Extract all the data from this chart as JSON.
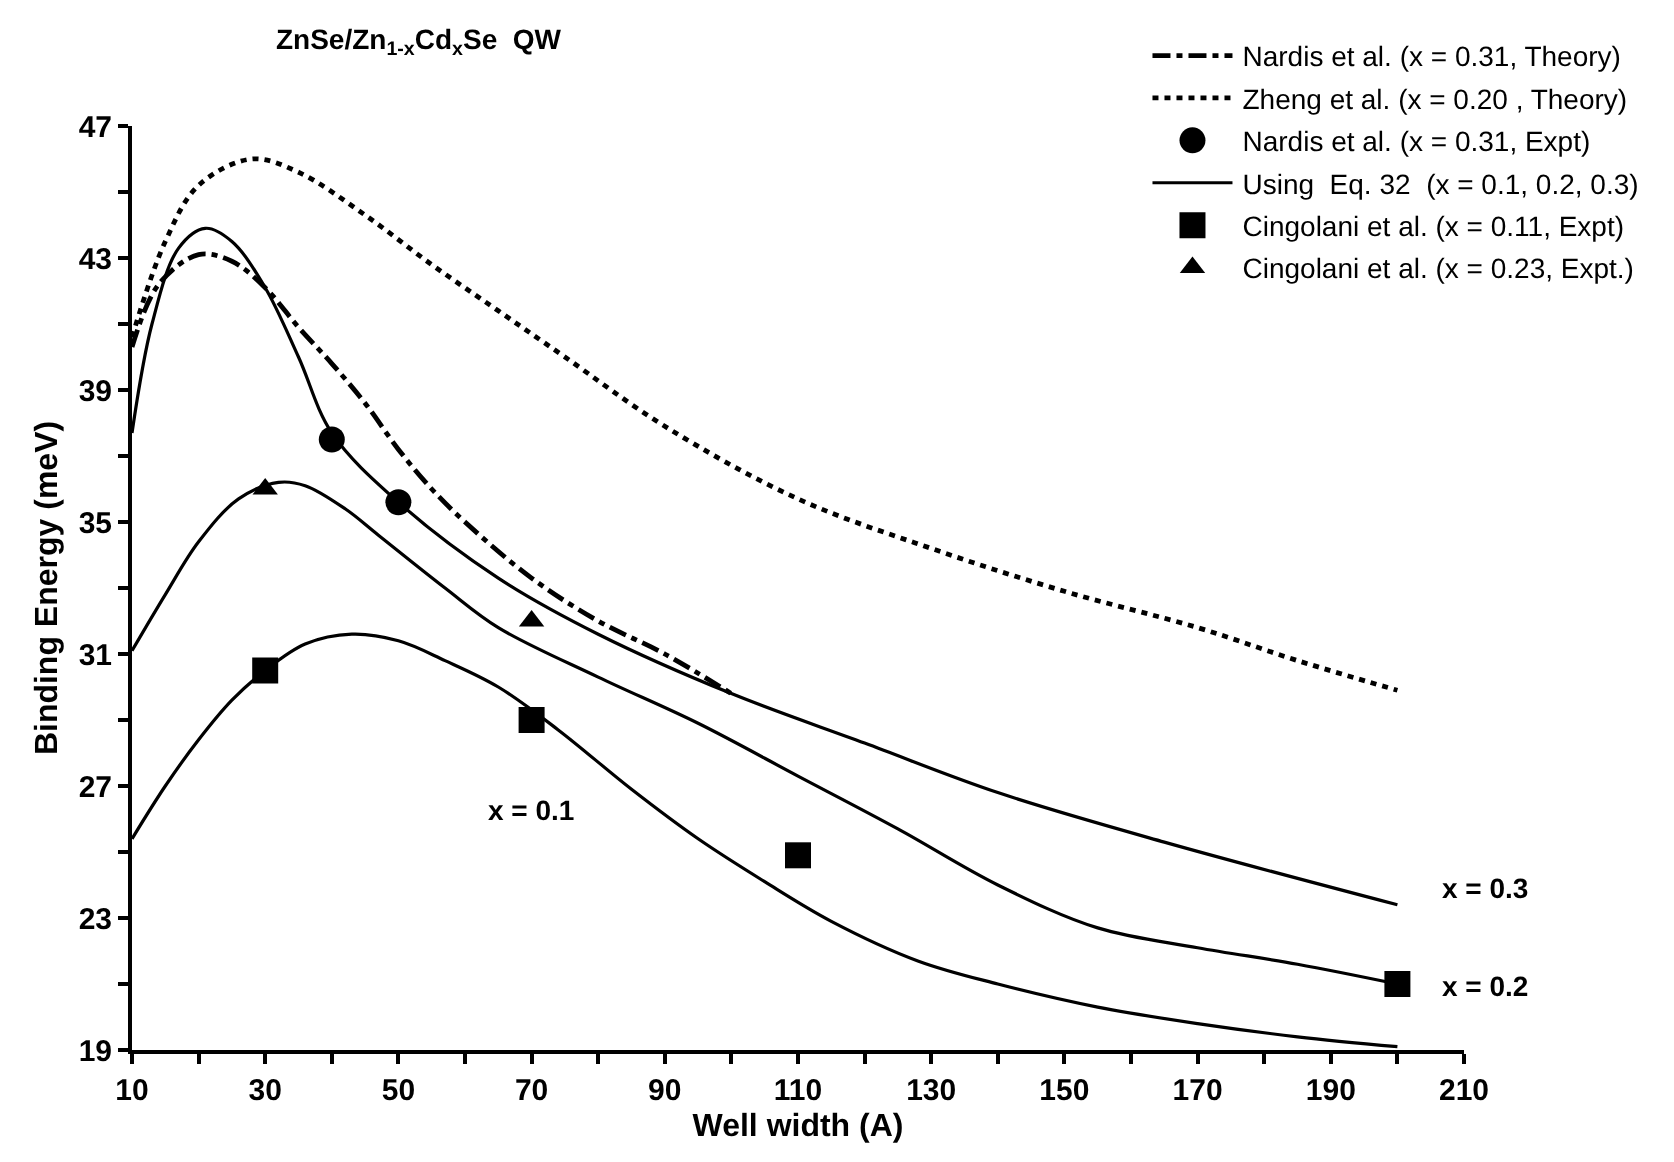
{
  "chart_data": {
    "type": "line",
    "title": "ZnSe/Zn$_{1-x}$Cd$_{x}$Se  QW",
    "xlabel": "Well width (A)",
    "ylabel": "Binding Energy (meV)",
    "xlim": [
      10,
      210
    ],
    "ylim": [
      19,
      47
    ],
    "xticks": [
      10,
      {
        "value": 20,
        "label": null
      },
      30,
      {
        "value": 40,
        "label": null
      },
      50,
      {
        "value": 60,
        "label": null
      },
      70,
      {
        "value": 80,
        "label": null
      },
      90,
      {
        "value": 100,
        "label": null
      },
      110,
      {
        "value": 120,
        "label": null
      },
      130,
      {
        "value": 140,
        "label": null
      },
      150,
      {
        "value": 160,
        "label": null
      },
      170,
      {
        "value": 180,
        "label": null
      },
      190,
      {
        "value": 200,
        "label": null
      },
      210
    ],
    "yticks": [
      19,
      {
        "value": 21,
        "label": null
      },
      23,
      {
        "value": 25,
        "label": null
      },
      27,
      {
        "value": 29,
        "label": null
      },
      31,
      {
        "value": 33,
        "label": null
      },
      35,
      {
        "value": 37,
        "label": null
      },
      39,
      {
        "value": 41,
        "label": null
      },
      43,
      {
        "value": 45,
        "label": null
      },
      47
    ],
    "legend": "top right",
    "series": [
      {
        "name": "Nardis et al. (x = 0.31, Theory)",
        "line_style": "dashdot",
        "marker": "none",
        "color": "#000000",
        "x": [
          10,
          14,
          20,
          25,
          30,
          35,
          40,
          45,
          50,
          55,
          60,
          70,
          80,
          90,
          100
        ],
        "values": [
          40.3,
          42.2,
          43.1,
          42.9,
          42.1,
          40.9,
          39.8,
          38.6,
          37.2,
          36.0,
          35.0,
          33.3,
          32.0,
          31.0,
          29.8
        ]
      },
      {
        "name": "Zheng et al. (x = 0.20 , Theory)",
        "line_style": "dotted",
        "marker": "none",
        "color": "#000000",
        "x": [
          10,
          15,
          20,
          28,
          35,
          45,
          55,
          65,
          75,
          90,
          110,
          130,
          150,
          170,
          185,
          200
        ],
        "values": [
          40.6,
          43.5,
          45.2,
          46.0,
          45.6,
          44.3,
          42.8,
          41.4,
          40.0,
          37.9,
          35.7,
          34.2,
          32.9,
          31.8,
          30.8,
          29.9
        ]
      },
      {
        "name": "Nardis et al. (x = 0.31, Expt)",
        "type": "scatter",
        "marker": "circle",
        "color": "#000000",
        "x": [
          40,
          50
        ],
        "values": [
          37.5,
          35.6
        ]
      },
      {
        "name": "Using  Eq. 32  (x = 0.1, 0.2, 0.3)",
        "line_style": "solid",
        "marker": "none",
        "color": "#000000",
        "x": [
          10,
          13,
          17,
          21,
          25,
          30,
          35,
          40,
          50,
          65,
          80,
          100,
          120,
          140,
          165,
          200
        ],
        "values": [
          37.7,
          41.0,
          43.3,
          43.9,
          43.5,
          42.1,
          40.0,
          37.7,
          35.6,
          33.3,
          31.6,
          29.8,
          28.3,
          26.8,
          25.3,
          23.4
        ]
      },
      {
        "line_style": "solid",
        "marker": "none",
        "color": "#000000",
        "x": [
          10,
          15,
          20,
          26,
          32,
          36,
          42,
          47,
          57,
          65,
          80,
          95,
          110,
          125,
          140,
          155,
          170,
          185,
          200
        ],
        "values": [
          31.1,
          32.8,
          34.4,
          35.7,
          36.2,
          36.1,
          35.4,
          34.6,
          33.0,
          31.8,
          30.3,
          28.9,
          27.3,
          25.7,
          24.0,
          22.7,
          22.1,
          21.6,
          21.0
        ]
      },
      {
        "line_style": "solid",
        "marker": "none",
        "color": "#000000",
        "x": [
          10,
          15,
          20,
          25,
          30,
          36,
          43,
          50,
          57,
          65,
          74,
          85,
          95,
          105,
          115,
          128,
          140,
          155,
          170,
          185,
          200
        ],
        "values": [
          25.4,
          27.0,
          28.4,
          29.6,
          30.5,
          31.3,
          31.6,
          31.4,
          30.8,
          30.0,
          28.7,
          26.9,
          25.4,
          24.1,
          22.9,
          21.7,
          21.0,
          20.3,
          19.8,
          19.4,
          19.1
        ]
      },
      {
        "name": "Cingolani et al. (x = 0.11, Expt)",
        "type": "scatter",
        "marker": "square",
        "color": "#000000",
        "x": [
          30,
          70,
          110,
          200
        ],
        "values": [
          30.5,
          29.0,
          24.9,
          21.0
        ]
      },
      {
        "name": "Cingolani et al. (x = 0.23, Expt.)",
        "type": "scatter",
        "marker": "triangle",
        "color": "#000000",
        "x": [
          30,
          70
        ],
        "values": [
          36.0,
          32.0
        ]
      }
    ],
    "annotations": [
      "x = 0.1",
      "x = 0.3",
      "x = 0.2"
    ]
  }
}
